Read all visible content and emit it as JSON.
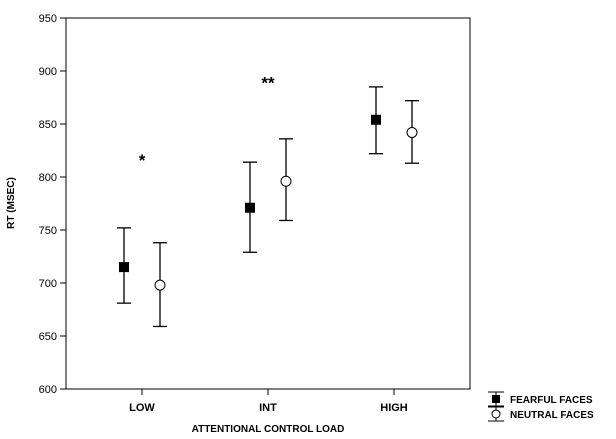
{
  "chart_data": {
    "type": "scatter",
    "title": "",
    "xlabel": "ATTENTIONAL CONTROL LOAD",
    "ylabel": "RT (MSEC)",
    "categories": [
      "LOW",
      "INT",
      "HIGH"
    ],
    "ylim": [
      600,
      950
    ],
    "yticks": [
      600,
      650,
      700,
      750,
      800,
      850,
      900,
      950
    ],
    "grid": false,
    "legend_position": "bottom-right",
    "series": [
      {
        "name": "FEARFUL FACES",
        "marker": "filled-square",
        "values": [
          715,
          771,
          854
        ],
        "error_low": [
          681,
          729,
          822
        ],
        "error_high": [
          752,
          814,
          885
        ]
      },
      {
        "name": "NEUTRAL FACES",
        "marker": "open-circle",
        "values": [
          698,
          796,
          842
        ],
        "error_low": [
          659,
          759,
          813
        ],
        "error_high": [
          738,
          836,
          872
        ]
      }
    ],
    "annotations": [
      {
        "text": "*",
        "category": "LOW",
        "y": 820
      },
      {
        "text": "**",
        "category": "INT",
        "y": 893
      }
    ]
  }
}
